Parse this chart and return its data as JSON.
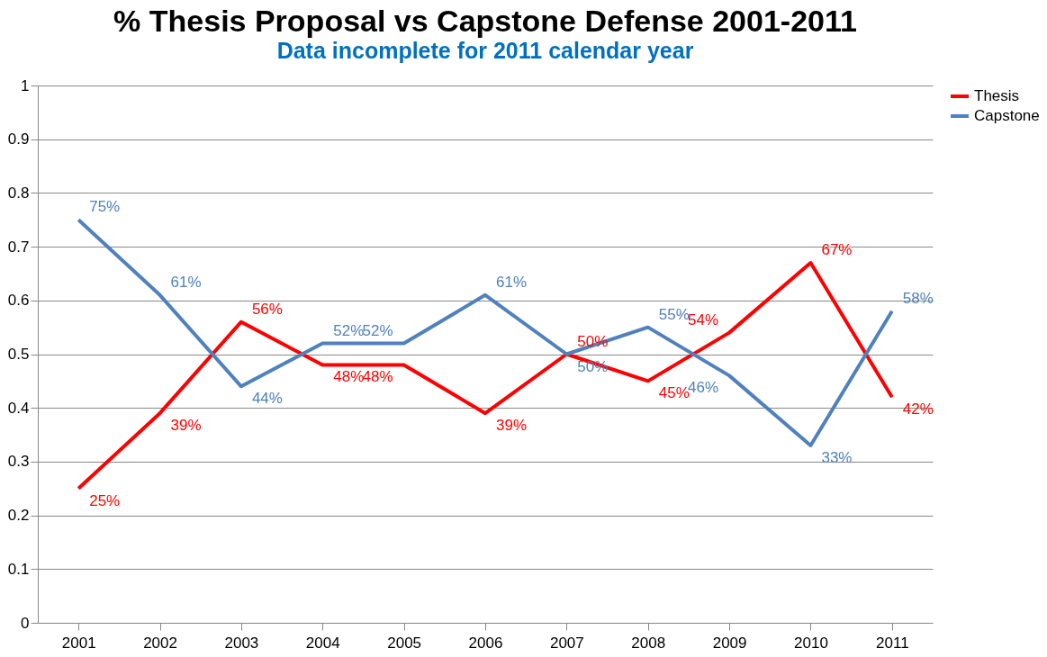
{
  "chart_data": {
    "type": "line",
    "title": "% Thesis Proposal vs Capstone Defense 2001-2011",
    "subtitle": "Data incomplete for 2011 calendar year",
    "categories": [
      "2001",
      "2002",
      "2003",
      "2004",
      "2005",
      "2006",
      "2007",
      "2008",
      "2009",
      "2010",
      "2011"
    ],
    "series": [
      {
        "name": "Thesis",
        "color": "#ff0000",
        "values": [
          0.25,
          0.39,
          0.56,
          0.48,
          0.48,
          0.39,
          0.5,
          0.45,
          0.54,
          0.67,
          0.42
        ],
        "value_labels": [
          "25%",
          "39%",
          "56%",
          "48%",
          "48%",
          "39%",
          "50%",
          "45%",
          "54%",
          "67%",
          "42%"
        ]
      },
      {
        "name": "Capstone",
        "color": "#4f81bd",
        "values": [
          0.75,
          0.61,
          0.44,
          0.52,
          0.52,
          0.61,
          0.5,
          0.55,
          0.46,
          0.33,
          0.58
        ],
        "value_labels": [
          "75%",
          "61%",
          "44%",
          "52%",
          "52%",
          "61%",
          "50%",
          "55%",
          "46%",
          "33%",
          "58%"
        ]
      }
    ],
    "ylim": [
      0,
      1
    ],
    "yticks": [
      0,
      0.1,
      0.2,
      0.3,
      0.4,
      0.5,
      0.6,
      0.7,
      0.8,
      0.9,
      1
    ],
    "grid": "y",
    "legend": "right",
    "marker": "none",
    "line_style": "solid"
  }
}
